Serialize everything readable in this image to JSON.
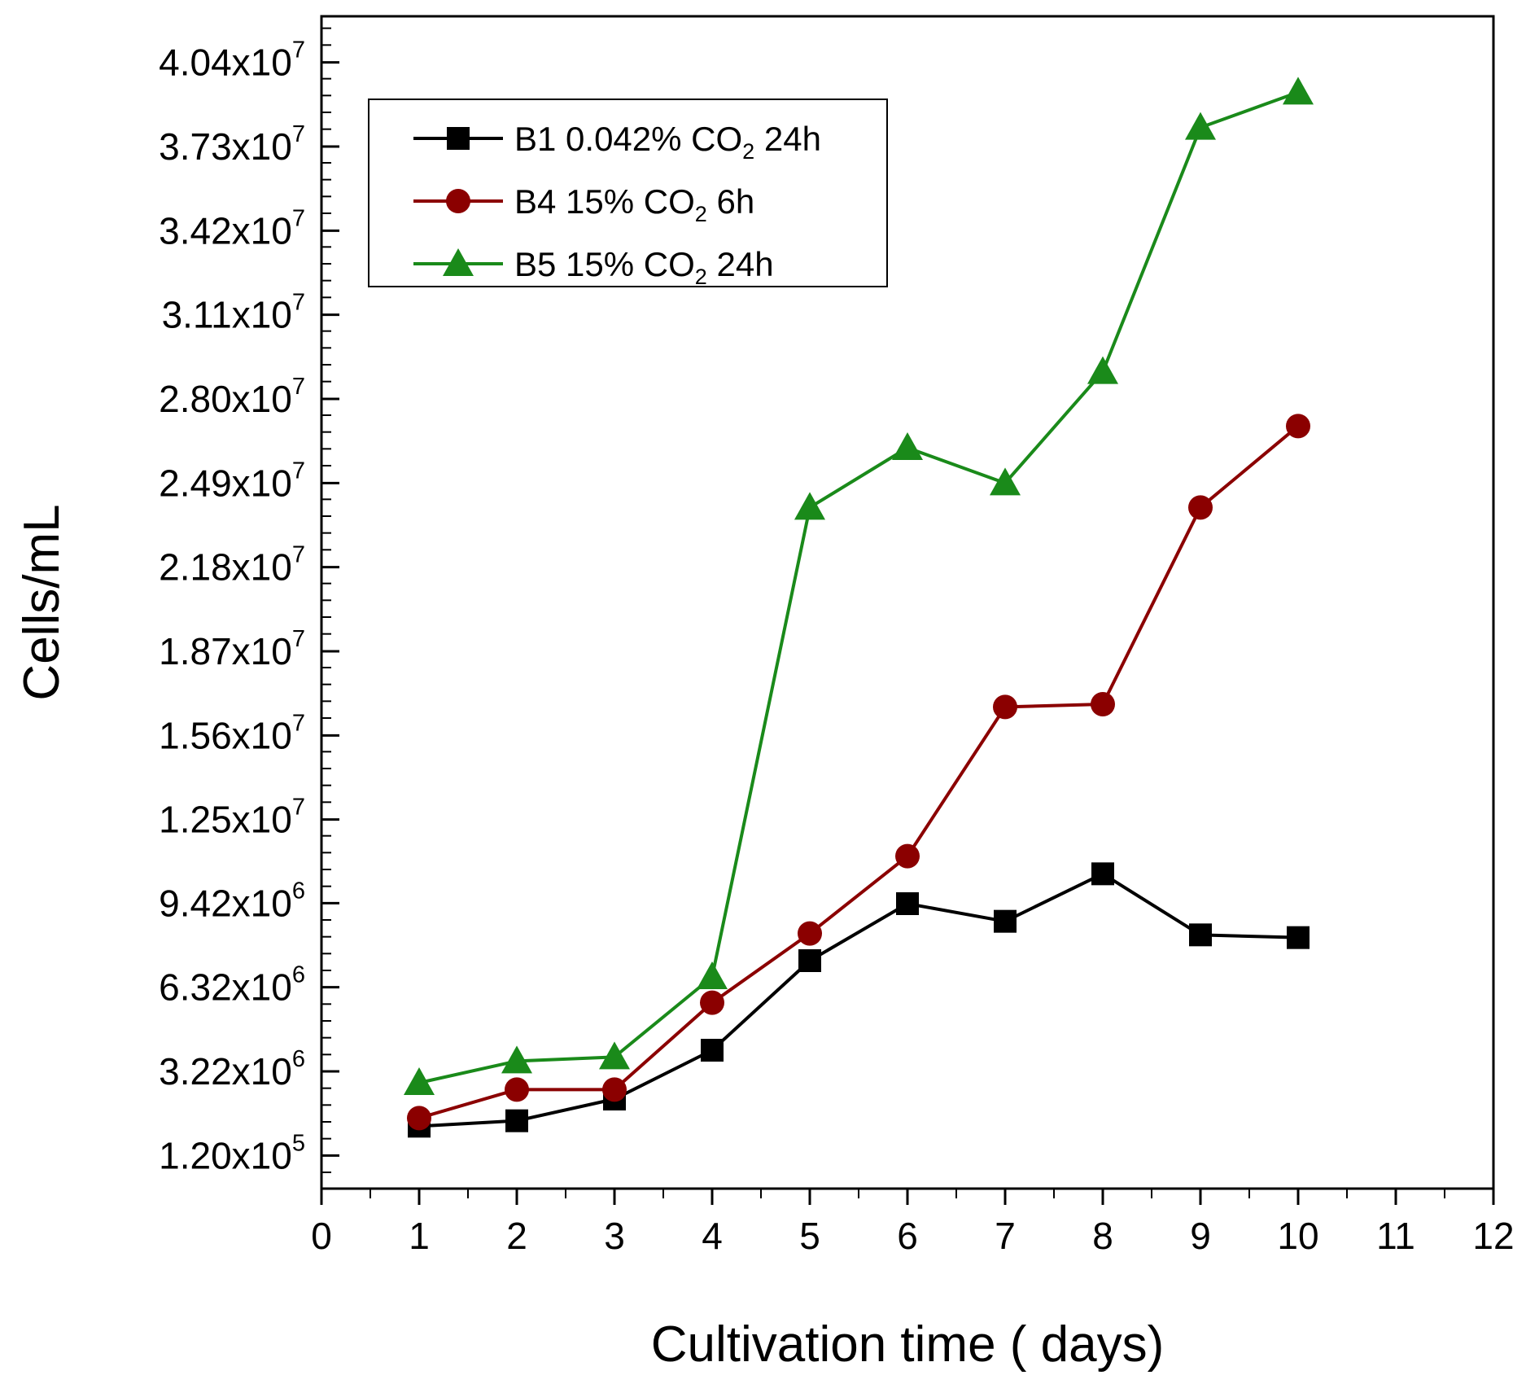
{
  "chart_data": {
    "type": "line",
    "xlabel": "Cultivation time ( days)",
    "ylabel": "Cells/mL",
    "xlim": [
      0,
      12
    ],
    "ylim": [
      -1100000.0,
      42100000.0
    ],
    "x_ticks": [
      0,
      1,
      2,
      3,
      4,
      5,
      6,
      7,
      8,
      9,
      10,
      11,
      12
    ],
    "x_tick_labels": [
      "0",
      "1",
      "2",
      "3",
      "4",
      "5",
      "6",
      "7",
      "8",
      "9",
      "10",
      "11",
      "12"
    ],
    "y_ticks": [
      {
        "value": 120000,
        "mantissa": "1.20x10",
        "exponent": "5"
      },
      {
        "value": 3220000,
        "mantissa": "3.22x10",
        "exponent": "6"
      },
      {
        "value": 6320000,
        "mantissa": "6.32x10",
        "exponent": "6"
      },
      {
        "value": 9420000,
        "mantissa": "9.42x10",
        "exponent": "6"
      },
      {
        "value": 12500000,
        "mantissa": "1.25x10",
        "exponent": "7"
      },
      {
        "value": 15600000,
        "mantissa": "1.56x10",
        "exponent": "7"
      },
      {
        "value": 18700000,
        "mantissa": "1.87x10",
        "exponent": "7"
      },
      {
        "value": 21800000,
        "mantissa": "2.18x10",
        "exponent": "7"
      },
      {
        "value": 24900000,
        "mantissa": "2.49x10",
        "exponent": "7"
      },
      {
        "value": 28000000,
        "mantissa": "2.80x10",
        "exponent": "7"
      },
      {
        "value": 31100000,
        "mantissa": "3.11x10",
        "exponent": "7"
      },
      {
        "value": 34200000,
        "mantissa": "3.42x10",
        "exponent": "7"
      },
      {
        "value": 37300000,
        "mantissa": "3.73x10",
        "exponent": "7"
      },
      {
        "value": 40400000,
        "mantissa": "4.04x10",
        "exponent": "7"
      }
    ],
    "grid": false,
    "legend_position": "top-left",
    "series": [
      {
        "name": "B1 0.042% CO2 24h",
        "legend_parts": [
          "B1 0.042% CO",
          "2",
          " 24h"
        ],
        "color": "#000000",
        "marker": "square",
        "x": [
          1,
          2,
          3,
          4,
          5,
          6,
          7,
          8,
          9,
          10
        ],
        "y": [
          1200000,
          1400000,
          2200000,
          4000000,
          7300000,
          9400000,
          8750000,
          10500000,
          8250000,
          8150000
        ]
      },
      {
        "name": "B4 15% CO2 6h",
        "legend_parts": [
          "B4 15% CO",
          "2",
          " 6h"
        ],
        "color": "#8b0000",
        "marker": "circle",
        "x": [
          1,
          2,
          3,
          4,
          5,
          6,
          7,
          8,
          9,
          10
        ],
        "y": [
          1500000,
          2550000,
          2550000,
          5750000,
          8300000,
          11150000,
          16650000,
          16750000,
          24000000,
          27000000
        ]
      },
      {
        "name": "B5 15% CO2 24h",
        "legend_parts": [
          "B5 15% CO",
          "2",
          " 24h"
        ],
        "color": "#1a8a1a",
        "marker": "triangle",
        "x": [
          1,
          2,
          3,
          4,
          5,
          6,
          7,
          8,
          9,
          10
        ],
        "y": [
          2800000,
          3600000,
          3750000,
          6700000,
          24000000,
          26200000,
          24900000,
          29000000,
          38000000,
          39300000
        ]
      }
    ]
  }
}
